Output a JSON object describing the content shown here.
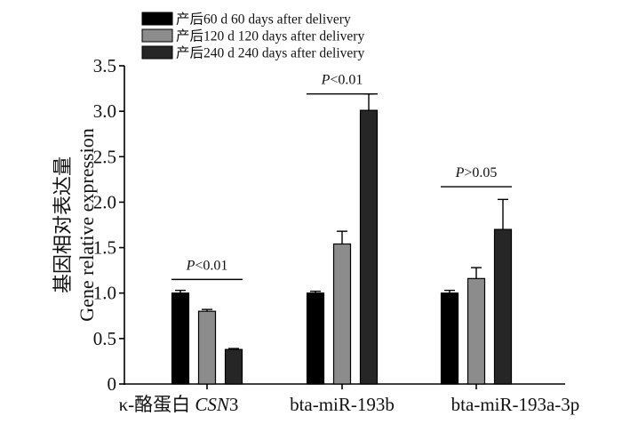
{
  "chart_data": {
    "type": "bar",
    "categories": [
      "κ-酪蛋白 CSN3",
      "bta-miR-193b",
      "bta-miR-193a-3p"
    ],
    "category_labels": [
      {
        "plain": "κ-酪蛋白 ",
        "italic": "CSN",
        "tail": "3"
      },
      {
        "plain": "bta-miR-193b",
        "italic": "",
        "tail": ""
      },
      {
        "plain": "bta-miR-193a-3p",
        "italic": "",
        "tail": ""
      }
    ],
    "series": [
      {
        "name": "产后60 d  60 days after delivery",
        "color": "#000000",
        "values": [
          1.0,
          1.0,
          1.0
        ],
        "errors": [
          0.03,
          0.02,
          0.03
        ]
      },
      {
        "name": "产后120 d  120 days after delivery",
        "color": "#8c8c8c",
        "values": [
          0.8,
          1.54,
          1.16
        ],
        "errors": [
          0.02,
          0.14,
          0.12
        ]
      },
      {
        "name": "产后240 d  240 days after delivery",
        "color": "#262626",
        "values": [
          0.38,
          3.01,
          1.7
        ],
        "errors": [
          0.01,
          0.18,
          0.33
        ]
      }
    ],
    "ylabel_zh": "基因相对表达量",
    "ylabel_en": "Gene relative expression",
    "xlabel": "",
    "ylim": [
      0,
      3.5
    ],
    "yticks": [
      "0",
      "0.5",
      "1.0",
      "1.5",
      "2.0",
      "2.5",
      "3.0",
      "3.5"
    ],
    "annotations": [
      {
        "category": 0,
        "italic": "P",
        "rest": "<0.01",
        "value": 1.15
      },
      {
        "category": 1,
        "italic": "P",
        "rest": "<0.01",
        "value": 3.19
      },
      {
        "category": 2,
        "italic": "P",
        "rest": ">0.05",
        "value": 2.17
      }
    ],
    "legend_position": "top-left",
    "grid": false
  }
}
